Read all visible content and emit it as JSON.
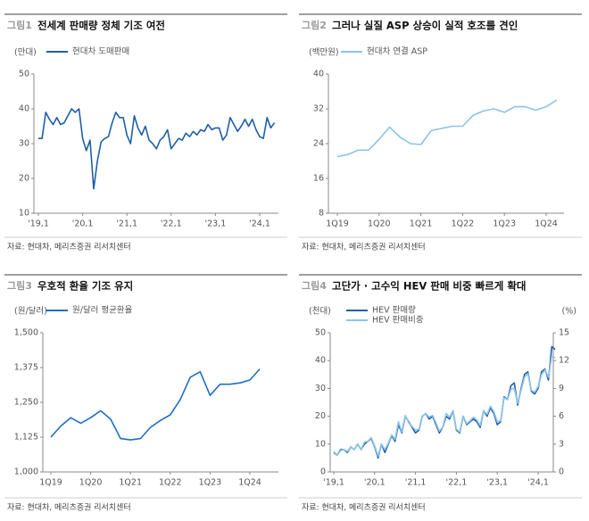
{
  "chart_data": [
    {
      "type": "line",
      "fig_label": "그림1",
      "title": "전세계 판매량 정체 기조 여전",
      "y_label": "(만대)",
      "source": "자료: 현대차, 메리츠증권 리서치센터",
      "categories": [
        "'19,1",
        null,
        null,
        null,
        null,
        null,
        null,
        null,
        null,
        null,
        null,
        null,
        "'20,1",
        null,
        null,
        null,
        null,
        null,
        null,
        null,
        null,
        null,
        null,
        null,
        "'21,1",
        null,
        null,
        null,
        null,
        null,
        null,
        null,
        null,
        null,
        null,
        null,
        "'22,1",
        null,
        null,
        null,
        null,
        null,
        null,
        null,
        null,
        null,
        null,
        null,
        "'23,1",
        null,
        null,
        null,
        null,
        null,
        null,
        null,
        null,
        null,
        null,
        null,
        "'24,1",
        null,
        null,
        null,
        null
      ],
      "series": [
        {
          "name": "현대차 도매판매",
          "color": "#1f5fa8",
          "values": [
            31.5,
            31.5,
            39,
            37,
            35.5,
            37.5,
            35.5,
            36,
            38,
            40,
            39,
            40,
            31.5,
            28,
            31,
            17,
            25,
            30.5,
            31.5,
            32,
            36,
            39,
            37.5,
            37.5,
            32.5,
            30,
            38,
            34.5,
            32.5,
            35,
            31,
            30,
            28.5,
            31,
            32,
            34,
            28.5,
            30,
            31.5,
            31,
            33,
            32,
            33.5,
            32.5,
            34,
            33.5,
            35.5,
            34,
            34.5,
            34.5,
            31,
            32.5,
            37.5,
            35.5,
            33.5,
            35,
            37,
            35,
            37,
            34,
            32,
            31.5,
            37.5,
            34.5,
            36
          ]
        }
      ],
      "ylim": [
        10,
        50
      ],
      "yticks": [
        10,
        20,
        30,
        40,
        50
      ]
    },
    {
      "type": "line",
      "fig_label": "그림2",
      "title": "그러나 실질 ASP 상승이 실적 호조를 견인",
      "y_label": "(백만원)",
      "source": "자료: 현대차, 메리츠증권 리서치센터",
      "categories": [
        "1Q19",
        null,
        null,
        null,
        "1Q20",
        null,
        null,
        null,
        "1Q21",
        null,
        null,
        null,
        "1Q22",
        null,
        null,
        null,
        "1Q23",
        null,
        null,
        null,
        "1Q24",
        null
      ],
      "series": [
        {
          "name": "현대차 연결 ASP",
          "color": "#8cc3ea",
          "values": [
            21,
            21.5,
            22.5,
            22.5,
            25,
            27.8,
            25.5,
            24,
            23.8,
            27,
            27.5,
            28,
            28,
            30.5,
            31.5,
            32,
            31.2,
            32.5,
            32.5,
            31.7,
            32.5,
            34
          ]
        }
      ],
      "ylim": [
        8,
        40
      ],
      "yticks": [
        8,
        16,
        24,
        32,
        40
      ]
    },
    {
      "type": "line",
      "fig_label": "그림3",
      "title": "우호적 환율 기조 유지",
      "y_label": "(원/달러)",
      "source": "자료: 현대차, 메리츠증권 리서치센터",
      "categories": [
        "1Q19",
        null,
        null,
        null,
        "1Q20",
        null,
        null,
        null,
        "1Q21",
        null,
        null,
        null,
        "1Q22",
        null,
        null,
        null,
        "1Q23",
        null,
        null,
        null,
        "1Q24",
        null
      ],
      "series": [
        {
          "name": "원/달러 평균환율",
          "color": "#1f6fc6",
          "values": [
            1125,
            1165,
            1195,
            1175,
            1195,
            1220,
            1190,
            1120,
            1115,
            1120,
            1160,
            1185,
            1205,
            1260,
            1340,
            1360,
            1275,
            1315,
            1315,
            1320,
            1330,
            1370
          ]
        }
      ],
      "ylim": [
        1000,
        1500
      ],
      "yticks": [
        {
          "value": 1000,
          "label": "1,000"
        },
        {
          "value": 1125,
          "label": "1,125"
        },
        {
          "value": 1250,
          "label": "1,250"
        },
        {
          "value": 1375,
          "label": "1,375"
        },
        {
          "value": 1500,
          "label": "1,500"
        }
      ]
    },
    {
      "type": "line",
      "fig_label": "그림4",
      "title": "고단가 · 고수익 HEV 판매 비중 빠르게 확대",
      "y_label": "(천대)",
      "y2_label": "(%)",
      "source": "자료: 현대차, 메리츠증권 리서치센터",
      "categories": [
        "'19,1",
        null,
        null,
        null,
        null,
        null,
        null,
        null,
        null,
        null,
        null,
        null,
        "'20,1",
        null,
        null,
        null,
        null,
        null,
        null,
        null,
        null,
        null,
        null,
        null,
        "'21,1",
        null,
        null,
        null,
        null,
        null,
        null,
        null,
        null,
        null,
        null,
        null,
        "'22,1",
        null,
        null,
        null,
        null,
        null,
        null,
        null,
        null,
        null,
        null,
        null,
        "'23,1",
        null,
        null,
        null,
        null,
        null,
        null,
        null,
        null,
        null,
        null,
        null,
        "'24,1",
        null,
        null,
        null,
        null,
        null
      ],
      "series": [
        {
          "name": "HEV 판매량",
          "color": "#1f5fa8",
          "values": [
            7,
            6,
            8,
            8,
            7,
            9,
            8,
            10,
            8,
            10,
            11,
            12,
            9,
            5,
            10,
            7,
            10,
            13,
            11,
            17,
            14,
            20,
            18,
            16,
            14,
            15,
            20,
            21,
            19,
            20,
            17,
            14,
            16,
            20,
            19,
            22,
            15,
            14,
            20,
            17,
            18,
            19,
            18,
            16,
            22,
            20,
            23,
            21,
            17,
            18,
            27,
            26,
            31,
            32,
            24,
            30,
            35,
            36,
            29,
            28,
            30,
            36,
            37,
            33,
            45,
            44
          ]
        },
        {
          "name": "HEV 판매비중",
          "color": "#8cc3ea",
          "axis": "y2",
          "values": [
            2.2,
            1.8,
            2.3,
            2.4,
            2.2,
            2.7,
            2.4,
            3.0,
            2.4,
            3.2,
            3.3,
            3.7,
            2.8,
            1.7,
            3.0,
            2.4,
            3.1,
            4.0,
            3.5,
            5.4,
            4.3,
            6.1,
            5.3,
            4.9,
            4.5,
            4.6,
            6.0,
            6.3,
            5.9,
            6.1,
            5.3,
            4.4,
            4.8,
            6.3,
            5.9,
            6.6,
            4.6,
            4.3,
            6.0,
            5.2,
            5.5,
            5.9,
            5.6,
            5.0,
            6.6,
            6.2,
            7.1,
            6.5,
            5.4,
            5.5,
            8.0,
            7.8,
            8.9,
            9.0,
            7.4,
            8.8,
            10.2,
            10.6,
            8.8,
            8.6,
            9.2,
            10.5,
            11.0,
            10.2,
            12.5,
            12.3
          ]
        }
      ],
      "ylim": [
        0,
        50
      ],
      "yticks": [
        0,
        10,
        20,
        30,
        40,
        50
      ],
      "y2lim": [
        0,
        15
      ],
      "y2ticks": [
        0,
        3,
        6,
        9,
        12,
        15
      ]
    }
  ]
}
